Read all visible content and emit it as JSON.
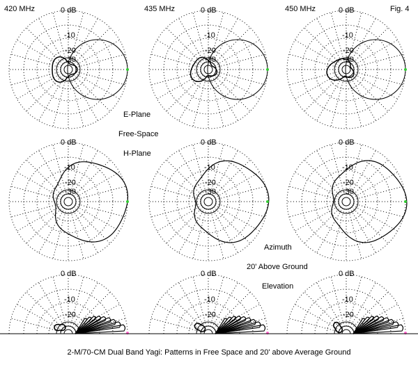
{
  "figure_label": "Fig. 4",
  "caption": "2-M/70-CM Dual Band Yagi:  Patterns in Free Space and 20' above Average Ground",
  "frequencies": [
    "420 MHz",
    "435 MHz",
    "450 MHz"
  ],
  "row_labels": {
    "e_plane": "E-Plane",
    "free_space": "Free-Space",
    "h_plane": "H-Plane",
    "azimuth": "Azimuth",
    "above_ground": "20' Above Ground",
    "elevation": "Elevation"
  },
  "ring_labels": [
    "0 dB",
    "-10",
    "-20",
    "-30"
  ],
  "colors": {
    "trace": "#000000",
    "grid": "#000000",
    "marker": "#33cc33",
    "marker_right": "#ff66cc"
  }
}
